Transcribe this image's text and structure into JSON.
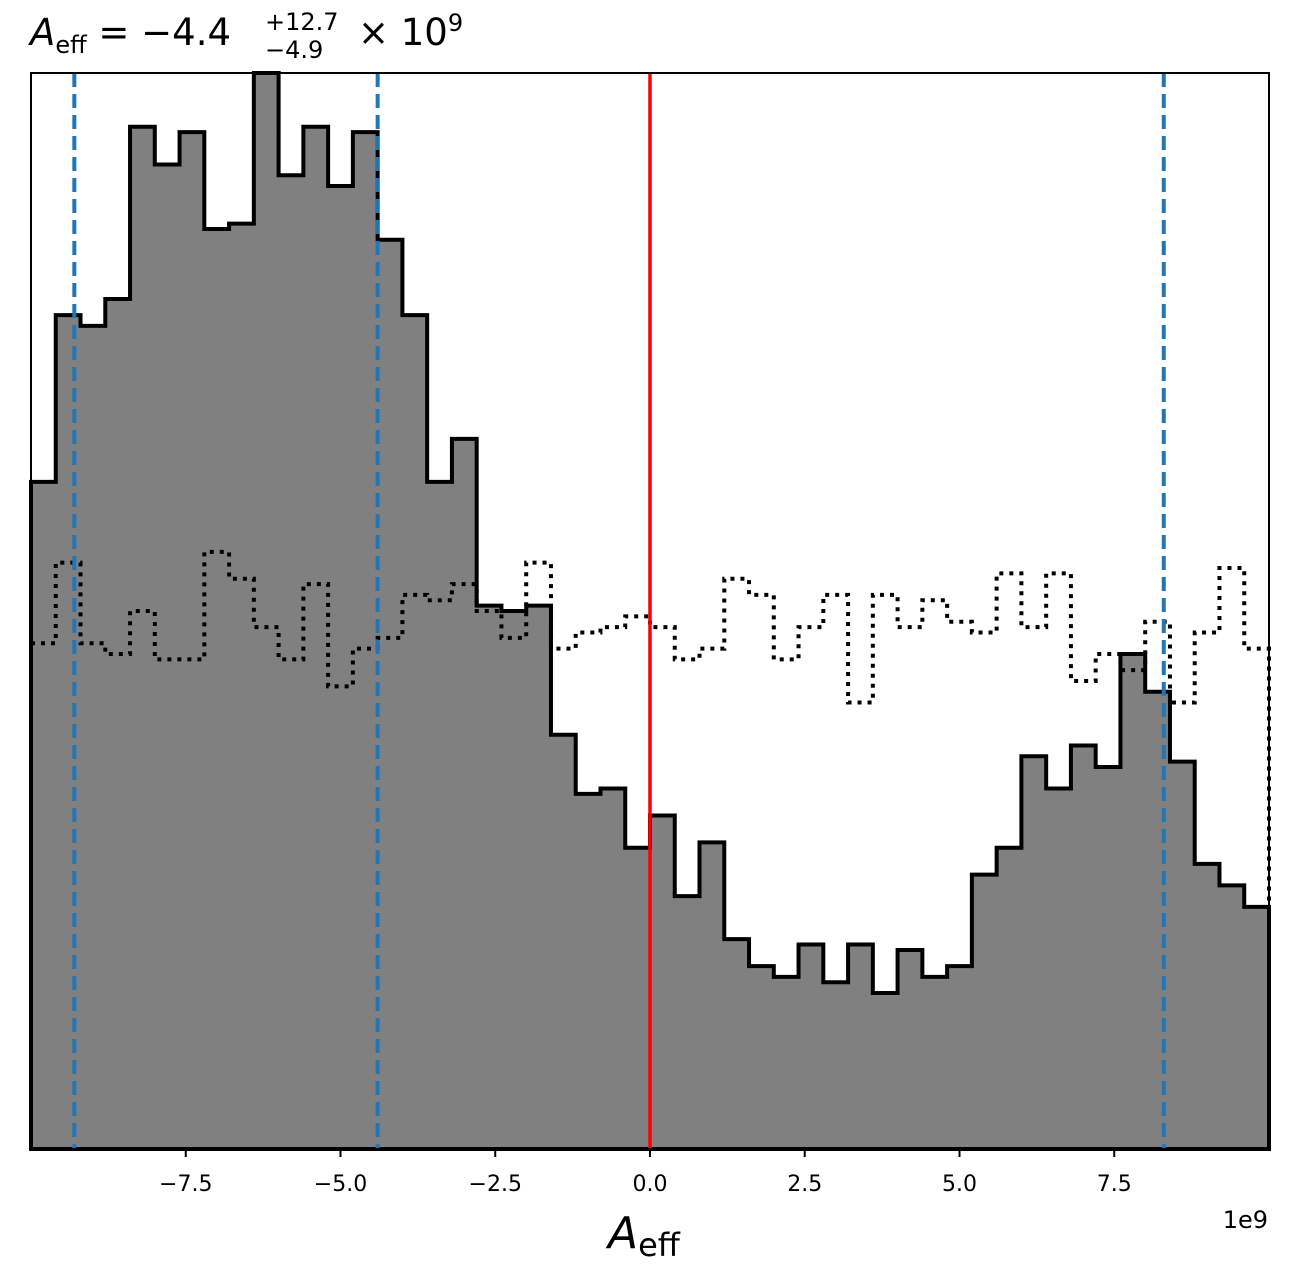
{
  "title": {
    "symbol": "A",
    "subscript": "eff",
    "equals": " = ",
    "value": "−4.4",
    "upper_err": "+12.7",
    "lower_err": "−4.9",
    "times": " × 10",
    "exponent": "9"
  },
  "axes": {
    "xlabel_symbol": "A",
    "xlabel_subscript": "eff",
    "x_offset_label": "1e9",
    "x_tick_labels": [
      "−7.5",
      "−5.0",
      "−2.5",
      "0.0",
      "2.5",
      "5.0",
      "7.5"
    ]
  },
  "chart_data": {
    "type": "histogram",
    "x_unit_multiplier": 1000000000,
    "xlim": [
      -10.0,
      10.0
    ],
    "ylim": [
      0,
      100
    ],
    "y_axis": "hidden",
    "x_ticks": [
      -7.5,
      -5.0,
      -2.5,
      0.0,
      2.5,
      5.0,
      7.5
    ],
    "bin_edges": [
      -10.0,
      -9.6,
      -9.2,
      -8.8,
      -8.4,
      -8.0,
      -7.6,
      -7.2,
      -6.8,
      -6.4,
      -6.0,
      -5.6,
      -5.2,
      -4.8,
      -4.4,
      -4.0,
      -3.6,
      -3.2,
      -2.8,
      -2.4,
      -2.0,
      -1.6,
      -1.2,
      -0.8,
      -0.4,
      0.0,
      0.4,
      0.8,
      1.2,
      1.6,
      2.0,
      2.4,
      2.8,
      3.2,
      3.6,
      4.0,
      4.4,
      4.8,
      5.2,
      5.6,
      6.0,
      6.4,
      6.8,
      7.2,
      7.6,
      8.0,
      8.4,
      8.8,
      9.2,
      9.6,
      10.0
    ],
    "series": [
      {
        "style": "filled-grey-step",
        "color": "#808080",
        "edgecolor": "#000000",
        "values": [
          62.0,
          77.5,
          76.5,
          79.0,
          95.0,
          91.5,
          94.5,
          85.5,
          86.0,
          100.0,
          90.5,
          95.0,
          89.5,
          94.5,
          84.5,
          77.5,
          62.0,
          66.0,
          50.5,
          50.0,
          50.5,
          38.5,
          33.0,
          33.5,
          28.0,
          31.0,
          23.5,
          28.5,
          19.5,
          17.0,
          16.0,
          19.0,
          15.5,
          19.0,
          14.5,
          18.5,
          16.0,
          17.0,
          25.5,
          28.0,
          36.5,
          33.5,
          37.5,
          35.5,
          46.0,
          42.5,
          36.0,
          26.5,
          24.5,
          22.5
        ]
      },
      {
        "style": "dotted-step",
        "color": "#000000",
        "values": [
          47.0,
          54.5,
          47.0,
          46.0,
          50.0,
          45.5,
          45.5,
          55.5,
          53.0,
          48.5,
          45.5,
          52.5,
          43.0,
          46.5,
          47.5,
          51.5,
          51.0,
          52.5,
          50.0,
          47.5,
          54.5,
          46.5,
          48.0,
          48.5,
          49.5,
          48.5,
          45.5,
          46.5,
          53.0,
          51.5,
          45.5,
          48.5,
          51.5,
          41.5,
          51.5,
          48.5,
          51.0,
          49.0,
          48.0,
          53.5,
          48.5,
          53.5,
          43.5,
          46.0,
          44.5,
          49.0,
          41.5,
          48.0,
          54.0,
          46.5
        ]
      }
    ],
    "vlines": [
      {
        "x": -9.3,
        "style": "dashed",
        "color": "#1f77b4"
      },
      {
        "x": -4.4,
        "style": "dashed",
        "color": "#1f77b4"
      },
      {
        "x": 0.0,
        "style": "solid",
        "color": "#ff0000"
      },
      {
        "x": 8.3,
        "style": "dashed",
        "color": "#1f77b4"
      }
    ]
  }
}
